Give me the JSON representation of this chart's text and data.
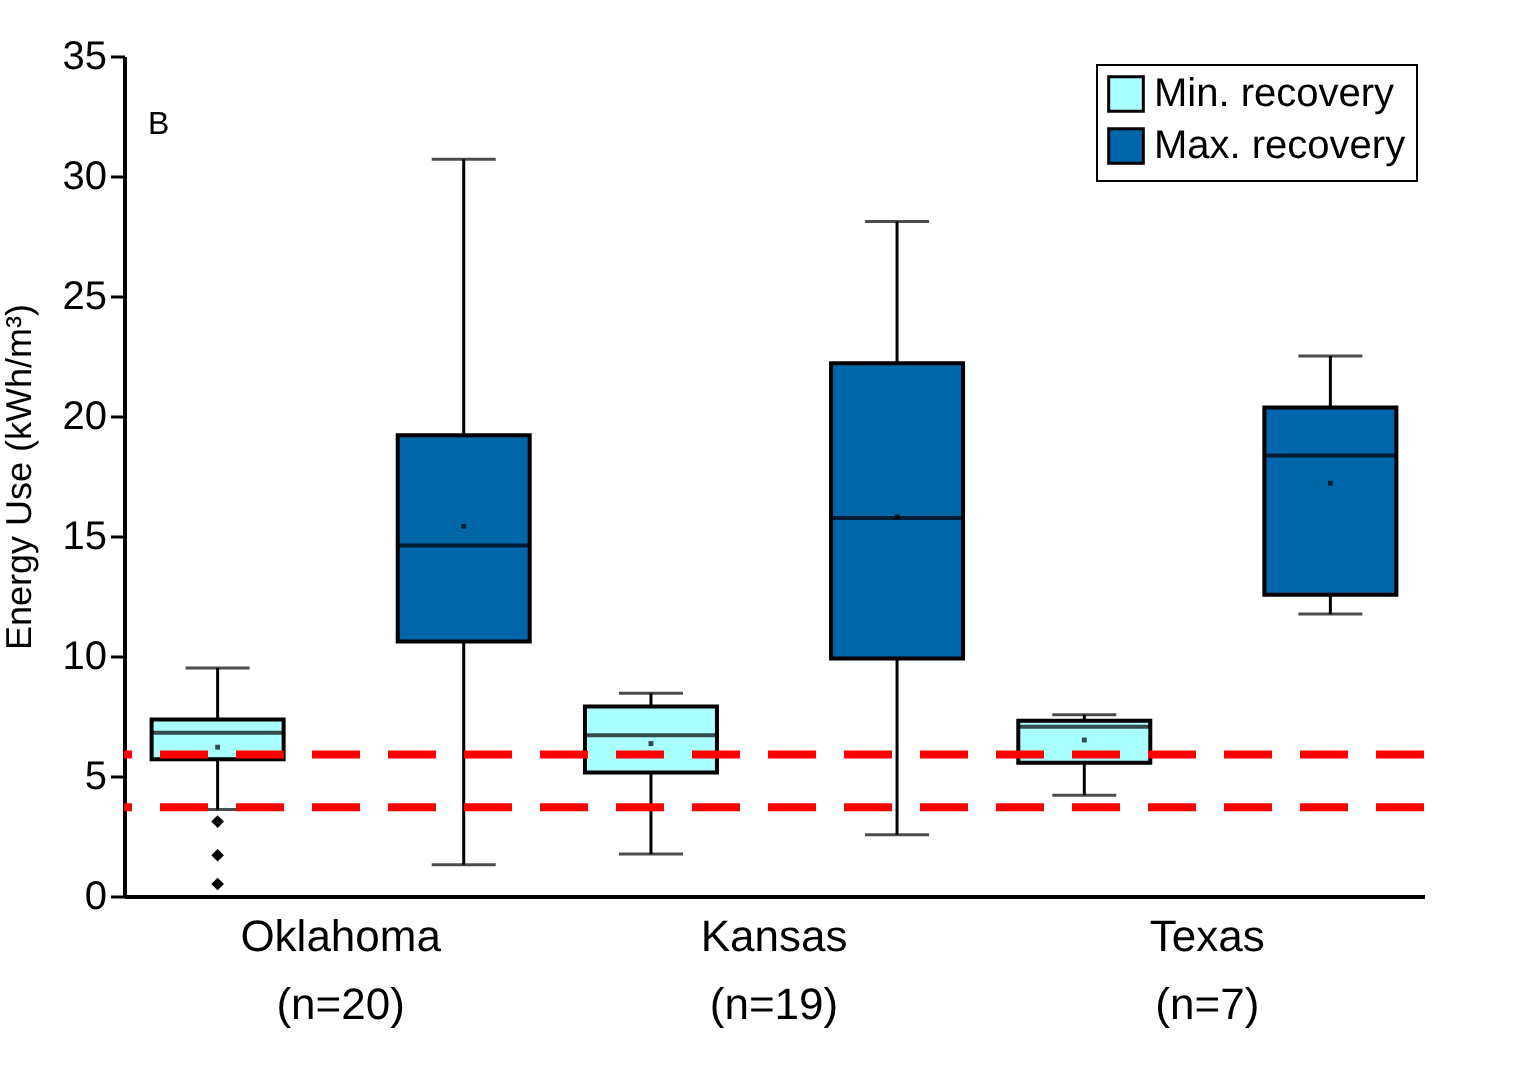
{
  "chart_data": {
    "type": "box",
    "ylabel": "Energy Use  (kWh/m³)",
    "categories": [
      "Oklahoma\n(n=20)",
      "Kansas\n(n=19)",
      "Texas\n(n=7)"
    ],
    "ylim": [
      0,
      35
    ],
    "yticks": [
      0,
      5,
      10,
      15,
      20,
      25,
      30,
      35
    ],
    "grid": false,
    "legend": "top right",
    "annotations": [
      "B"
    ],
    "ref_lines": [
      {
        "axis": "y",
        "value": 5.9,
        "label": null,
        "color": "#ff0000",
        "line_style": "dashed"
      },
      {
        "axis": "y",
        "value": 3.7,
        "label": null,
        "color": "#ff0000",
        "line_style": "dashed"
      }
    ],
    "series": [
      {
        "name": "Min. recovery",
        "color": "#aaffff",
        "boxes": [
          {
            "low": 3.6,
            "q1": 5.7,
            "median": 6.8,
            "q3": 7.35,
            "high": 9.5,
            "mean": 6.2,
            "outliers": [
              3.1,
              1.7,
              0.5
            ]
          },
          {
            "low": 1.75,
            "q1": 5.15,
            "median": 6.7,
            "q3": 7.9,
            "high": 8.45,
            "mean": 6.35
          },
          {
            "low": 4.2,
            "q1": 5.55,
            "median": 7.05,
            "q3": 7.3,
            "high": 7.55,
            "mean": 6.5
          }
        ]
      },
      {
        "name": "Max. recovery",
        "color": "#0066aa",
        "boxes": [
          {
            "low": 1.3,
            "q1": 10.6,
            "median": 14.6,
            "q3": 19.2,
            "high": 30.7,
            "mean": 15.4
          },
          {
            "low": 2.55,
            "q1": 9.9,
            "median": 15.75,
            "q3": 22.2,
            "high": 28.1,
            "mean": 15.8
          },
          {
            "low": 11.75,
            "q1": 12.55,
            "median": 18.35,
            "q3": 20.35,
            "high": 22.5,
            "mean": 17.2
          }
        ]
      }
    ]
  }
}
